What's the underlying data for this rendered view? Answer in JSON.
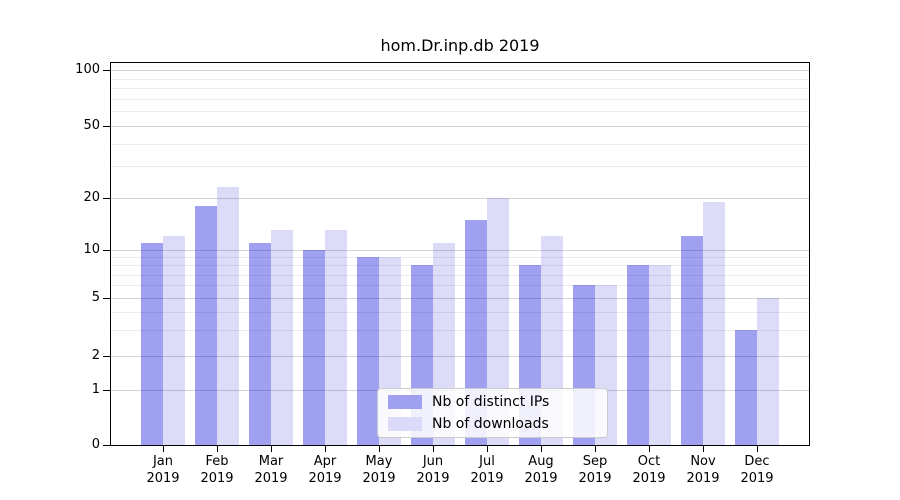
{
  "title": "hom.Dr.inp.db 2019",
  "chart_data": {
    "type": "bar",
    "title": "hom.Dr.inp.db 2019",
    "categories": [
      "Jan 2019",
      "Feb 2019",
      "Mar 2019",
      "Apr 2019",
      "May 2019",
      "Jun 2019",
      "Jul 2019",
      "Aug 2019",
      "Sep 2019",
      "Oct 2019",
      "Nov 2019",
      "Dec 2019"
    ],
    "series": [
      {
        "name": "Nb of distinct IPs",
        "values": [
          11,
          18,
          11,
          10,
          9,
          8,
          15,
          8,
          6,
          8,
          12,
          3
        ],
        "fill": "rgba(17,17,217,0.40)",
        "swatch": "#a0a0f0"
      },
      {
        "name": "Nb of downloads",
        "values": [
          12,
          23,
          13,
          13,
          9,
          11,
          20,
          12,
          6,
          8,
          19,
          5
        ],
        "fill": "rgba(17,17,217,0.15)",
        "swatch": "#dbdbf9"
      }
    ],
    "xlabel": "",
    "ylabel": "",
    "yscale": "symlog",
    "ylim": [
      0,
      100
    ],
    "yticks": [
      0,
      1,
      2,
      5,
      10,
      20,
      50,
      100
    ],
    "yticks_minor": [
      3,
      4,
      6,
      7,
      8,
      9,
      30,
      40,
      60,
      70,
      80,
      90
    ],
    "grid": "on",
    "legend_position": "lower center",
    "colors": {
      "bar_dark": "#a0a0f0",
      "bar_light": "#dbdbf9",
      "grid_major": "#d4d4d4",
      "grid_minor": "#ececec",
      "axis": "#000000",
      "background": "#ffffff"
    }
  }
}
